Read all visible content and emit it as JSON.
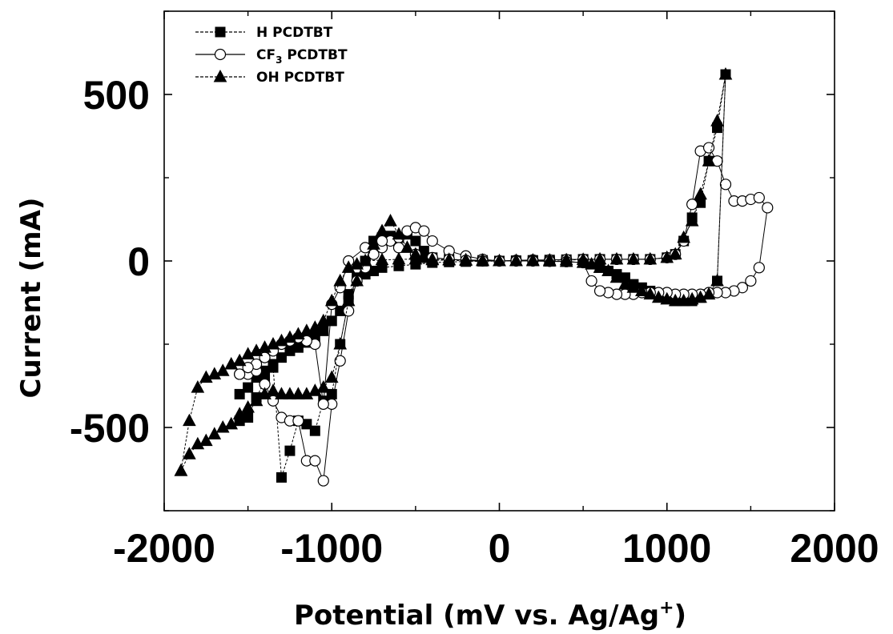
{
  "chart_data": {
    "type": "line",
    "title": "",
    "xlabel": "Potential (mV vs. Ag/Ag",
    "xlabel_sup": "+",
    "xlabel_end": ")",
    "ylabel": "Current (mA)",
    "xlim": [
      -2000,
      2000
    ],
    "ylim": [
      -750,
      750
    ],
    "x_ticks": [
      -2000,
      -1000,
      0,
      1000,
      2000
    ],
    "y_ticks": [
      -500,
      0,
      500
    ],
    "x_tick_labels": [
      "-2000",
      "-1000",
      "0",
      "1000",
      "2000"
    ],
    "y_tick_labels": [
      "-500",
      "0",
      "500"
    ],
    "grid": false,
    "legend_position": "top-left",
    "series": [
      {
        "name": "H PCDTBT",
        "name_parts": [
          "H PCDTBT",
          "",
          ""
        ],
        "marker": "square",
        "line": "dashed",
        "x": [
          -1550,
          -1500,
          -1450,
          -1400,
          -1350,
          -1300,
          -1250,
          -1200,
          -1150,
          -1100,
          -1050,
          -1000,
          -950,
          -900,
          -850,
          -800,
          -750,
          -700,
          -650,
          -600,
          -550,
          -500,
          -450,
          -400,
          -300,
          -200,
          -100,
          0,
          100,
          200,
          300,
          400,
          500,
          600,
          700,
          800,
          900,
          1000,
          1050,
          1100,
          1150,
          1200,
          1250,
          1300,
          1350,
          1300,
          1250,
          1200,
          1150,
          1100,
          1050,
          1000,
          950,
          900,
          850,
          800,
          750,
          700,
          650,
          600,
          500,
          400,
          300,
          200,
          100,
          0,
          -100,
          -200,
          -300,
          -400,
          -500,
          -600,
          -700,
          -750,
          -800,
          -850,
          -900,
          -950,
          -1000,
          -1050,
          -1100,
          -1150,
          -1200,
          -1250,
          -1300,
          -1350,
          -1400,
          -1450,
          -1500,
          -1550
        ],
        "y": [
          -480,
          -470,
          -410,
          -360,
          -320,
          -650,
          -570,
          -480,
          -490,
          -510,
          -420,
          -400,
          -250,
          -120,
          -50,
          0,
          60,
          70,
          75,
          70,
          80,
          60,
          30,
          10,
          5,
          3,
          2,
          0,
          1,
          2,
          3,
          4,
          5,
          5,
          5,
          5,
          5,
          10,
          20,
          60,
          130,
          175,
          300,
          400,
          560,
          -60,
          -100,
          -110,
          -120,
          -120,
          -120,
          -110,
          -100,
          -90,
          -80,
          -70,
          -50,
          -40,
          -30,
          -20,
          -5,
          -2,
          -1,
          0,
          0,
          0,
          -1,
          -2,
          -3,
          -5,
          -10,
          -15,
          -20,
          -30,
          -40,
          -60,
          -100,
          -150,
          -180,
          -210,
          -230,
          -245,
          -260,
          -270,
          -290,
          -310,
          -330,
          -350,
          -380,
          -400
        ]
      },
      {
        "name": "CF3 PCDTBT",
        "name_parts": [
          "CF",
          "3",
          " PCDTBT"
        ],
        "marker": "circle",
        "line": "solid",
        "x": [
          -1550,
          -1500,
          -1450,
          -1400,
          -1350,
          -1300,
          -1250,
          -1200,
          -1150,
          -1100,
          -1050,
          -1000,
          -950,
          -900,
          -850,
          -800,
          -750,
          -700,
          -650,
          -600,
          -550,
          -500,
          -450,
          -400,
          -300,
          -200,
          -100,
          0,
          100,
          200,
          300,
          400,
          500,
          600,
          700,
          800,
          900,
          1000,
          1050,
          1100,
          1150,
          1200,
          1250,
          1300,
          1350,
          1400,
          1450,
          1500,
          1550,
          1600,
          1550,
          1500,
          1450,
          1400,
          1350,
          1300,
          1250,
          1200,
          1150,
          1100,
          1050,
          1000,
          950,
          900,
          850,
          800,
          750,
          700,
          650,
          600,
          550,
          500,
          400,
          300,
          200,
          100,
          0,
          -100,
          -200,
          -300,
          -400,
          -500,
          -600,
          -700,
          -800,
          -900,
          -950,
          -1000,
          -1050,
          -1100,
          -1150,
          -1200,
          -1250,
          -1300,
          -1350,
          -1400,
          -1450,
          -1500,
          -1550
        ],
        "y": [
          -340,
          -340,
          -330,
          -370,
          -420,
          -470,
          -480,
          -480,
          -600,
          -600,
          -660,
          -430,
          -300,
          -150,
          -60,
          -20,
          20,
          40,
          60,
          70,
          90,
          100,
          90,
          60,
          30,
          15,
          5,
          0,
          2,
          3,
          3,
          4,
          5,
          5,
          5,
          5,
          5,
          10,
          20,
          60,
          170,
          330,
          340,
          300,
          230,
          180,
          180,
          185,
          190,
          160,
          -20,
          -60,
          -80,
          -90,
          -95,
          -95,
          -95,
          -100,
          -100,
          -100,
          -100,
          -95,
          -95,
          -95,
          -95,
          -100,
          -100,
          -100,
          -95,
          -90,
          -60,
          -5,
          -2,
          -1,
          0,
          0,
          0,
          0,
          2,
          5,
          10,
          20,
          40,
          60,
          40,
          0,
          -80,
          -130,
          -430,
          -250,
          -240,
          -230,
          -240,
          -250,
          -270,
          -290,
          -310,
          -320,
          -340
        ]
      },
      {
        "name": "OH PCDTBT",
        "name_parts": [
          "OH PCDTBT",
          "",
          ""
        ],
        "marker": "triangle",
        "line": "dashed",
        "x": [
          -1900,
          -1850,
          -1800,
          -1750,
          -1700,
          -1650,
          -1600,
          -1550,
          -1500,
          -1450,
          -1400,
          -1350,
          -1300,
          -1250,
          -1200,
          -1150,
          -1100,
          -1050,
          -1000,
          -950,
          -900,
          -850,
          -800,
          -750,
          -700,
          -650,
          -600,
          -550,
          -500,
          -450,
          -400,
          -300,
          -200,
          -100,
          0,
          100,
          200,
          300,
          400,
          500,
          600,
          700,
          800,
          900,
          1000,
          1050,
          1100,
          1150,
          1200,
          1250,
          1300,
          1350,
          1300,
          1250,
          1200,
          1150,
          1100,
          1050,
          1000,
          950,
          900,
          850,
          800,
          750,
          700,
          650,
          600,
          550,
          500,
          400,
          300,
          200,
          100,
          0,
          -100,
          -200,
          -300,
          -400,
          -500,
          -600,
          -700,
          -800,
          -850,
          -900,
          -950,
          -1000,
          -1050,
          -1100,
          -1150,
          -1200,
          -1250,
          -1300,
          -1350,
          -1400,
          -1450,
          -1500,
          -1550,
          -1600,
          -1650,
          -1700,
          -1750,
          -1800,
          -1850,
          -1900
        ],
        "y": [
          -630,
          -580,
          -550,
          -540,
          -520,
          -500,
          -490,
          -460,
          -440,
          -420,
          -400,
          -390,
          -400,
          -400,
          -400,
          -400,
          -390,
          -380,
          -350,
          -250,
          -120,
          -60,
          0,
          50,
          90,
          120,
          80,
          40,
          20,
          10,
          5,
          4,
          3,
          2,
          0,
          1,
          2,
          2,
          3,
          4,
          5,
          5,
          5,
          5,
          10,
          20,
          70,
          120,
          200,
          300,
          420,
          560,
          -60,
          -100,
          -110,
          -115,
          -120,
          -120,
          -115,
          -110,
          -100,
          -90,
          -80,
          -70,
          -50,
          -30,
          -20,
          -10,
          -5,
          -2,
          -1,
          0,
          0,
          0,
          0,
          1,
          2,
          3,
          5,
          5,
          3,
          0,
          -10,
          -20,
          -60,
          -120,
          -180,
          -200,
          -210,
          -220,
          -230,
          -240,
          -250,
          -260,
          -270,
          -280,
          -300,
          -310,
          -330,
          -340,
          -350,
          -380,
          -480,
          -630
        ]
      }
    ]
  }
}
